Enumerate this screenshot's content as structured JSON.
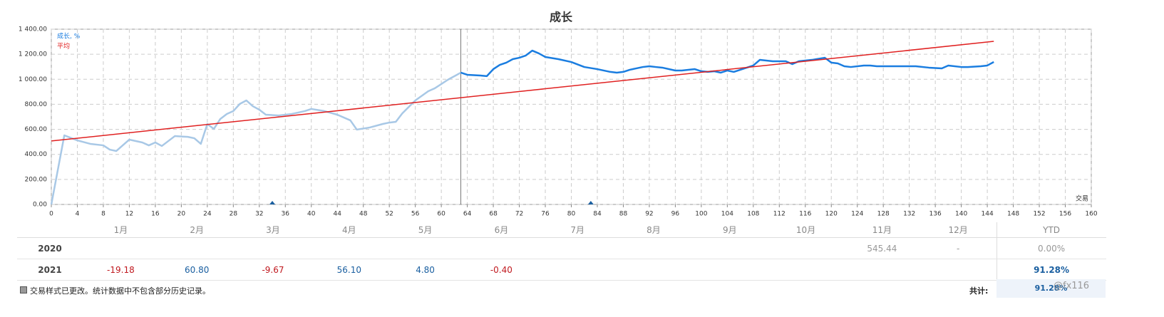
{
  "chart_data": {
    "type": "line",
    "title": "成长",
    "x_label": "交易",
    "xlim": [
      0,
      160
    ],
    "xticks": [
      0,
      4,
      8,
      12,
      16,
      20,
      24,
      28,
      32,
      36,
      40,
      44,
      48,
      52,
      56,
      60,
      64,
      68,
      72,
      76,
      80,
      84,
      88,
      92,
      96,
      100,
      104,
      108,
      112,
      116,
      120,
      124,
      128,
      132,
      136,
      140,
      144,
      148,
      152,
      156,
      160
    ],
    "ylim": [
      0,
      1400
    ],
    "yticks": [
      {
        "value": 0,
        "label": "0.00"
      },
      {
        "value": 200,
        "label": "200.00"
      },
      {
        "value": 400,
        "label": "400.00"
      },
      {
        "value": 600,
        "label": "600.00"
      },
      {
        "value": 800,
        "label": "800.00"
      },
      {
        "value": 1000,
        "label": "1 000.00"
      },
      {
        "value": 1200,
        "label": "1 200.00"
      },
      {
        "value": 1400,
        "label": "1 400.00"
      }
    ],
    "grid": true,
    "legend": "top-left",
    "marker_x": 63,
    "events_x": [
      34,
      83
    ],
    "series": [
      {
        "name": "成长, %",
        "color": "#1a7de0",
        "history_color": "#a8c8e6",
        "x": [
          0,
          2,
          4,
          6,
          8,
          9,
          10,
          12,
          14,
          15,
          16,
          17,
          19,
          21,
          22,
          23,
          24,
          25,
          26,
          27,
          28,
          29,
          30,
          31,
          32,
          33,
          35,
          37,
          39,
          40,
          42,
          44,
          46,
          47,
          49,
          51,
          52,
          53,
          54,
          56,
          58,
          59,
          61,
          63,
          64,
          66,
          67,
          68,
          69,
          70,
          71,
          72,
          73,
          74,
          75,
          76,
          78,
          80,
          82,
          84,
          86,
          87,
          88,
          89,
          91,
          92,
          93,
          94,
          96,
          97,
          99,
          100,
          101,
          102,
          103,
          104,
          105,
          106,
          108,
          109,
          111,
          113,
          114,
          115,
          117,
          119,
          120,
          121,
          122,
          123,
          125,
          126,
          127,
          130,
          133,
          135,
          137,
          138,
          140,
          141,
          143,
          144,
          145
        ],
        "values": [
          0,
          552,
          512,
          484,
          472,
          438,
          427,
          518,
          495,
          472,
          495,
          467,
          546,
          540,
          529,
          484,
          643,
          603,
          683,
          723,
          746,
          803,
          831,
          785,
          757,
          717,
          711,
          723,
          746,
          763,
          746,
          717,
          672,
          598,
          615,
          643,
          654,
          660,
          728,
          831,
          905,
          928,
          996,
          1053,
          1036,
          1030,
          1025,
          1081,
          1115,
          1133,
          1161,
          1172,
          1190,
          1229,
          1207,
          1178,
          1161,
          1138,
          1098,
          1081,
          1059,
          1053,
          1059,
          1076,
          1098,
          1104,
          1098,
          1093,
          1070,
          1070,
          1081,
          1064,
          1059,
          1064,
          1053,
          1070,
          1059,
          1076,
          1110,
          1155,
          1144,
          1144,
          1121,
          1144,
          1155,
          1172,
          1133,
          1127,
          1104,
          1098,
          1110,
          1110,
          1104,
          1104,
          1104,
          1093,
          1087,
          1110,
          1098,
          1098,
          1104,
          1110,
          1138
        ]
      },
      {
        "name": "平均",
        "color": "#e02020",
        "x": [
          0,
          145
        ],
        "values": [
          507,
          1303
        ]
      }
    ]
  },
  "table": {
    "header": [
      "1月",
      "2月",
      "3月",
      "4月",
      "5月",
      "6月",
      "7月",
      "8月",
      "9月",
      "10月",
      "11月",
      "12月",
      "YTD"
    ],
    "rows": [
      {
        "year": "2020",
        "cells": [
          null,
          null,
          null,
          null,
          null,
          null,
          null,
          null,
          null,
          null,
          "545.44",
          "-",
          "0.00%"
        ]
      },
      {
        "year": "2021",
        "cells": [
          "-19.18",
          "60.80",
          "-9.67",
          "56.10",
          "4.80",
          "-0.40",
          null,
          null,
          null,
          null,
          null,
          null,
          "91.28%"
        ]
      }
    ]
  },
  "footer": {
    "note": "交易样式已更改。统计数据中不包含部分历史记录。",
    "total_label": "共计:",
    "total": "91.28%"
  },
  "watermark": "@fx116"
}
